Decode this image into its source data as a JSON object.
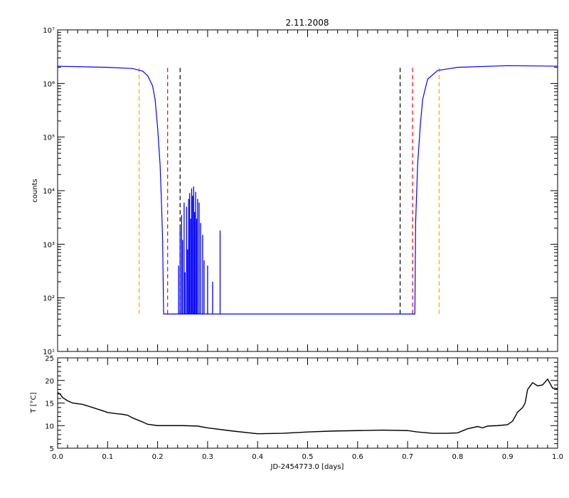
{
  "chart_data": [
    {
      "type": "line",
      "title": "2.11.2008",
      "ylabel": "counts",
      "xlabel": "",
      "xlim": [
        0.0,
        1.0
      ],
      "ylim": [
        10,
        10000000
      ],
      "yscale": "log",
      "grid": false,
      "line_color": "#0000ff",
      "y_tick_labels": [
        "10¹",
        "10²",
        "10³",
        "10⁴",
        "10⁵",
        "10⁶",
        "10⁷"
      ],
      "series": [
        {
          "values_x": [
            0.0,
            0.05,
            0.1,
            0.15,
            0.17,
            0.18,
            0.19,
            0.195,
            0.2,
            0.205,
            0.208,
            0.21,
            0.212,
            0.7145,
            0.716,
            0.72,
            0.725,
            0.73,
            0.74,
            0.76,
            0.8,
            0.9,
            1.0
          ],
          "values_y": [
            2100000,
            2050000,
            2000000,
            1900000,
            1700000,
            1400000,
            900000,
            500000,
            150000,
            30000,
            5000,
            1200,
            50,
            50,
            2500,
            30000,
            150000,
            500000,
            1200000,
            1750000,
            2000000,
            2150000,
            2100000
          ]
        }
      ],
      "spikes": {
        "baseline": 50,
        "x": [
          0.242,
          0.245,
          0.248,
          0.25,
          0.253,
          0.255,
          0.258,
          0.26,
          0.262,
          0.264,
          0.266,
          0.268,
          0.27,
          0.272,
          0.274,
          0.276,
          0.278,
          0.28,
          0.283,
          0.286,
          0.29,
          0.293,
          0.3,
          0.31,
          0.325
        ],
        "y": [
          400,
          2000,
          3500,
          1200,
          6000,
          300,
          5000,
          800,
          7000,
          9000,
          3000,
          11000,
          8000,
          12000,
          4000,
          9500,
          3000,
          7000,
          6000,
          2500,
          1500,
          500,
          400,
          200,
          1800
        ]
      },
      "vlines": [
        {
          "x": 0.163,
          "color": "#ffa500",
          "ymin": 50,
          "ymax": 2000000
        },
        {
          "x": 0.22,
          "color": "#ff0000",
          "ymin": 50,
          "ymax": 2000000
        },
        {
          "x": 0.245,
          "color": "#000000",
          "ymin": 50,
          "ymax": 2000000
        },
        {
          "x": 0.685,
          "color": "#000000",
          "ymin": 50,
          "ymax": 2000000
        },
        {
          "x": 0.71,
          "color": "#ff0000",
          "ymin": 50,
          "ymax": 2000000
        },
        {
          "x": 0.763,
          "color": "#ffa500",
          "ymin": 50,
          "ymax": 2000000
        }
      ]
    },
    {
      "type": "line",
      "title": "",
      "ylabel": "T [°C]",
      "xlabel": "JD-2454773.0 [days]",
      "xlim": [
        0.0,
        1.0
      ],
      "ylim": [
        5,
        25
      ],
      "grid": false,
      "line_color": "#000000",
      "x_ticks": [
        0.0,
        0.1,
        0.2,
        0.3,
        0.4,
        0.5,
        0.6,
        0.7,
        0.8,
        0.9,
        1.0
      ],
      "x_tick_labels": [
        "0.0",
        "0.1",
        "0.2",
        "0.3",
        "0.4",
        "0.5",
        "0.6",
        "0.7",
        "0.8",
        "0.9",
        "1.0"
      ],
      "y_ticks": [
        5,
        10,
        15,
        20,
        25
      ],
      "y_tick_labels": [
        "5",
        "10",
        "15",
        "20",
        "25"
      ],
      "series": [
        {
          "x": [
            0.0,
            0.005,
            0.01,
            0.02,
            0.03,
            0.05,
            0.07,
            0.09,
            0.1,
            0.12,
            0.13,
            0.14,
            0.15,
            0.17,
            0.18,
            0.2,
            0.25,
            0.28,
            0.3,
            0.35,
            0.4,
            0.45,
            0.5,
            0.55,
            0.6,
            0.65,
            0.7,
            0.72,
            0.75,
            0.78,
            0.8,
            0.82,
            0.84,
            0.85,
            0.86,
            0.88,
            0.9,
            0.91,
            0.92,
            0.93,
            0.935,
            0.94,
            0.95,
            0.96,
            0.97,
            0.98,
            0.985,
            0.99,
            1.0
          ],
          "y": [
            17.3,
            17.0,
            16.2,
            15.5,
            15.0,
            14.7,
            14.0,
            13.3,
            12.9,
            12.6,
            12.5,
            12.3,
            11.7,
            10.8,
            10.3,
            10.0,
            10.0,
            9.9,
            9.5,
            8.8,
            8.2,
            8.3,
            8.6,
            8.8,
            8.9,
            9.0,
            8.9,
            8.6,
            8.3,
            8.3,
            8.4,
            9.3,
            9.8,
            9.5,
            9.9,
            10.0,
            10.2,
            11.0,
            13.0,
            14.0,
            15.0,
            18.0,
            19.5,
            18.8,
            19.0,
            20.3,
            19.3,
            18.3,
            18.2
          ]
        }
      ]
    }
  ]
}
